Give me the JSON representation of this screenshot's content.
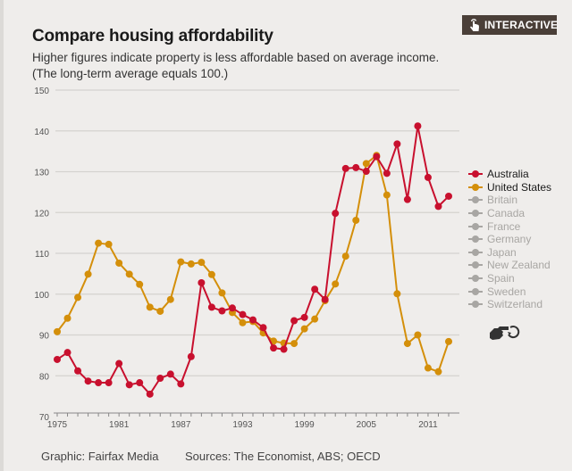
{
  "header": {
    "title": "Compare housing affordability",
    "subtitle_line1": "Higher figures indicate property is less affordable based on average income.",
    "subtitle_line2": "(The long-term average equals 100.)",
    "badge_label": "INTERACTIVE",
    "badge_icon": "touch-hand-icon"
  },
  "colors": {
    "australia": "#c8102e",
    "united_states": "#d48f0a",
    "inactive": "#a8a6a3",
    "grid": "#d4d2cf",
    "badge_bg": "#4a3f38"
  },
  "chart_data": {
    "type": "line",
    "title": "Compare housing affordability",
    "xlabel": "",
    "ylabel": "",
    "ylim": [
      70,
      150
    ],
    "yticks": [
      70,
      80,
      90,
      100,
      110,
      120,
      130,
      140,
      150
    ],
    "xlim": [
      1975,
      2013
    ],
    "xtick_labels": [
      "1975",
      "1981",
      "1987",
      "1993",
      "1999",
      "2005",
      "2011"
    ],
    "xtick_values": [
      1975,
      1981,
      1987,
      1993,
      1999,
      2005,
      2011
    ],
    "grid": true,
    "legend_position": "right",
    "x": [
      1975,
      1976,
      1977,
      1978,
      1979,
      1980,
      1981,
      1982,
      1983,
      1984,
      1985,
      1986,
      1987,
      1988,
      1989,
      1990,
      1991,
      1992,
      1993,
      1994,
      1995,
      1996,
      1997,
      1998,
      1999,
      2000,
      2001,
      2002,
      2003,
      2004,
      2005,
      2006,
      2007,
      2008,
      2009,
      2010,
      2011,
      2012,
      2013
    ],
    "series": [
      {
        "name": "Australia",
        "active": true,
        "values": [
          84,
          85.7,
          81.2,
          78.7,
          78.3,
          78.3,
          83,
          77.8,
          78.3,
          75.5,
          79.4,
          80.4,
          78,
          84.7,
          102.8,
          96.8,
          95.9,
          96.6,
          95,
          93.7,
          91.8,
          86.8,
          86.5,
          93.5,
          94.3,
          101.2,
          98.7,
          119.8,
          130.8,
          131,
          130.1,
          133.7,
          129.6,
          136.8,
          123.2,
          141.2,
          128.6,
          121.5,
          124
        ]
      },
      {
        "name": "United States",
        "active": true,
        "values": [
          90.8,
          94.1,
          99.2,
          104.9,
          112.5,
          112.2,
          107.6,
          104.9,
          102.4,
          96.8,
          95.8,
          98.7,
          107.9,
          107.4,
          107.8,
          104.8,
          100.3,
          95.5,
          93,
          93.3,
          90.5,
          88.5,
          88,
          87.9,
          91.5,
          93.9,
          98.4,
          102.5,
          109.3,
          118.1,
          132,
          134,
          124.3,
          100.1,
          87.9,
          90,
          81.9,
          81,
          88.4
        ]
      },
      {
        "name": "Britain",
        "active": false,
        "values": []
      },
      {
        "name": "Canada",
        "active": false,
        "values": []
      },
      {
        "name": "France",
        "active": false,
        "values": []
      },
      {
        "name": "Germany",
        "active": false,
        "values": []
      },
      {
        "name": "Japan",
        "active": false,
        "values": []
      },
      {
        "name": "New Zealand",
        "active": false,
        "values": []
      },
      {
        "name": "Spain",
        "active": false,
        "values": []
      },
      {
        "name": "Sweden",
        "active": false,
        "values": []
      },
      {
        "name": "Switzerland",
        "active": false,
        "values": []
      }
    ]
  },
  "legend": {
    "items": [
      "Australia",
      "United States",
      "Britain",
      "Canada",
      "France",
      "Germany",
      "Japan",
      "New Zealand",
      "Spain",
      "Sweden",
      "Switzerland"
    ],
    "reset_icon": "pointing-hand-reset-icon"
  },
  "footer": {
    "credit": "Graphic: Fairfax Media",
    "sources": "Sources: The Economist, ABS; OECD"
  }
}
